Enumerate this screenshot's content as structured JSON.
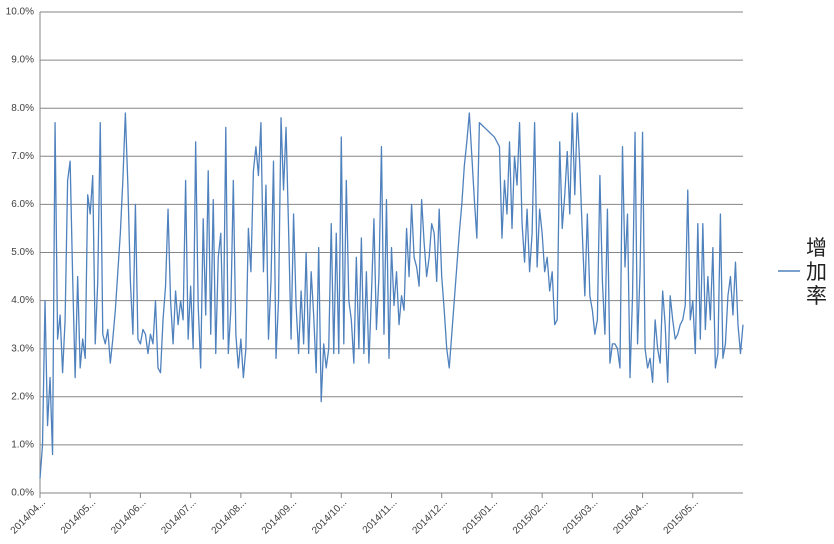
{
  "chart_data": {
    "type": "line",
    "categories": [
      "2014/04...",
      null,
      null,
      null,
      null,
      null,
      null,
      null,
      null,
      null,
      null,
      null,
      null,
      null,
      null,
      null,
      null,
      null,
      null,
      null,
      "2014/05...",
      null,
      null,
      null,
      null,
      null,
      null,
      null,
      null,
      null,
      null,
      null,
      null,
      null,
      null,
      null,
      null,
      null,
      null,
      null,
      "2014/06...",
      null,
      null,
      null,
      null,
      null,
      null,
      null,
      null,
      null,
      null,
      null,
      null,
      null,
      null,
      null,
      null,
      null,
      null,
      null,
      "2014/07...",
      null,
      null,
      null,
      null,
      null,
      null,
      null,
      null,
      null,
      null,
      null,
      null,
      null,
      null,
      null,
      null,
      null,
      null,
      null,
      "2014/08...",
      null,
      null,
      null,
      null,
      null,
      null,
      null,
      null,
      null,
      null,
      null,
      null,
      null,
      null,
      null,
      null,
      null,
      null,
      null,
      "2014/09...",
      null,
      null,
      null,
      null,
      null,
      null,
      null,
      null,
      null,
      null,
      null,
      null,
      null,
      null,
      null,
      null,
      null,
      null,
      null,
      "2014/10...",
      null,
      null,
      null,
      null,
      null,
      null,
      null,
      null,
      null,
      null,
      null,
      null,
      null,
      null,
      null,
      null,
      null,
      null,
      null,
      "2014/11...",
      null,
      null,
      null,
      null,
      null,
      null,
      null,
      null,
      null,
      null,
      null,
      null,
      null,
      null,
      null,
      null,
      null,
      null,
      null,
      "2014/12...",
      null,
      null,
      null,
      null,
      null,
      null,
      null,
      null,
      null,
      null,
      null,
      null,
      null,
      null,
      null,
      null,
      null,
      null,
      null,
      "2015/01...",
      null,
      null,
      null,
      null,
      null,
      null,
      null,
      null,
      null,
      null,
      null,
      null,
      null,
      null,
      null,
      null,
      null,
      null,
      null,
      "2015/02...",
      null,
      null,
      null,
      null,
      null,
      null,
      null,
      null,
      null,
      null,
      null,
      null,
      null,
      null,
      null,
      null,
      null,
      null,
      null,
      "2015/03...",
      null,
      null,
      null,
      null,
      null,
      null,
      null,
      null,
      null,
      null,
      null,
      null,
      null,
      null,
      null,
      null,
      null,
      null,
      null,
      "2015/04...",
      null,
      null,
      null,
      null,
      null,
      null,
      null,
      null,
      null,
      null,
      null,
      null,
      null,
      null,
      null,
      null,
      null,
      null,
      null,
      "2015/05...",
      null,
      null,
      null,
      null,
      null,
      null,
      null,
      null,
      null,
      null,
      null,
      null,
      null,
      null,
      null,
      null,
      null,
      null,
      null,
      null
    ],
    "series": [
      {
        "name": "增加率",
        "color": "#4f81bd",
        "values": [
          0.3,
          1.0,
          4.0,
          1.4,
          2.4,
          0.8,
          7.7,
          3.2,
          3.7,
          2.5,
          3.6,
          6.5,
          6.9,
          4.5,
          2.4,
          4.5,
          2.6,
          3.2,
          2.8,
          6.2,
          5.8,
          6.6,
          3.1,
          4.4,
          7.7,
          3.3,
          3.1,
          3.4,
          2.7,
          3.2,
          3.8,
          4.6,
          5.4,
          6.5,
          7.9,
          6.4,
          4.4,
          3.3,
          6.0,
          3.2,
          3.1,
          3.4,
          3.3,
          2.9,
          3.3,
          3.1,
          4.0,
          2.6,
          2.5,
          3.6,
          4.3,
          5.9,
          4.0,
          3.1,
          4.2,
          3.5,
          4.0,
          3.6,
          6.5,
          3.2,
          4.3,
          3.0,
          7.3,
          3.9,
          2.6,
          5.7,
          3.7,
          6.7,
          3.3,
          6.1,
          2.9,
          4.9,
          5.4,
          3.2,
          7.6,
          2.9,
          3.8,
          6.5,
          3.3,
          2.6,
          3.2,
          2.4,
          3.0,
          5.5,
          4.6,
          6.7,
          7.2,
          6.6,
          7.7,
          4.6,
          6.4,
          3.2,
          4.4,
          6.9,
          2.8,
          4.0,
          7.8,
          6.3,
          7.6,
          5.5,
          3.2,
          5.8,
          3.9,
          2.9,
          4.2,
          3.1,
          5.0,
          2.9,
          4.6,
          3.7,
          2.5,
          5.1,
          1.9,
          3.1,
          2.6,
          3.0,
          5.6,
          2.9,
          5.4,
          2.9,
          7.4,
          3.1,
          6.5,
          4.0,
          3.6,
          2.7,
          4.9,
          3.0,
          5.3,
          2.9,
          4.6,
          2.7,
          4.1,
          5.7,
          3.4,
          4.5,
          7.2,
          3.3,
          6.1,
          2.8,
          5.1,
          3.9,
          4.6,
          3.5,
          4.1,
          3.8,
          5.5,
          4.5,
          6.0,
          4.9,
          4.7,
          4.3,
          6.1,
          5.2,
          4.5,
          4.9,
          5.6,
          5.4,
          4.4,
          5.9,
          4.5,
          3.8,
          3.0,
          2.6,
          3.3,
          4.0,
          4.7,
          5.4,
          6.0,
          6.8,
          7.3,
          7.9,
          7.0,
          6.1,
          5.3,
          7.7,
          7.65,
          7.6,
          7.55,
          7.5,
          7.45,
          7.4,
          7.3,
          7.2,
          5.3,
          6.5,
          5.8,
          7.3,
          5.5,
          7.0,
          6.4,
          7.7,
          5.6,
          4.8,
          5.9,
          4.6,
          5.4,
          7.7,
          4.7,
          5.9,
          5.4,
          4.6,
          4.9,
          4.2,
          4.6,
          3.5,
          3.6,
          7.3,
          5.5,
          6.2,
          7.1,
          5.8,
          7.9,
          6.2,
          7.9,
          6.8,
          5.4,
          4.1,
          5.8,
          4.1,
          3.8,
          3.3,
          3.6,
          6.6,
          4.4,
          3.3,
          5.9,
          2.7,
          3.1,
          3.1,
          3.0,
          2.6,
          7.2,
          4.7,
          5.8,
          2.4,
          4.1,
          7.5,
          3.1,
          4.6,
          7.5,
          3.0,
          2.6,
          2.8,
          2.3,
          3.6,
          3.0,
          2.7,
          4.2,
          3.5,
          2.3,
          4.1,
          3.6,
          3.2,
          3.3,
          3.5,
          3.6,
          3.9,
          6.3,
          3.6,
          4.0,
          2.9,
          5.6,
          3.2,
          5.6,
          3.4,
          4.5,
          3.6,
          5.1,
          2.6,
          2.9,
          5.8,
          2.8,
          3.1,
          4.1,
          4.5,
          3.7,
          4.8,
          3.5,
          2.9,
          3.5
        ]
      }
    ],
    "ylim": [
      0,
      10
    ],
    "yticks": [
      {
        "value": 0,
        "label": "0.0%"
      },
      {
        "value": 1,
        "label": "1.0%"
      },
      {
        "value": 2,
        "label": "2.0%"
      },
      {
        "value": 3,
        "label": "3.0%"
      },
      {
        "value": 4,
        "label": "4.0%"
      },
      {
        "value": 5,
        "label": "5.0%"
      },
      {
        "value": 6,
        "label": "6.0%"
      },
      {
        "value": 7,
        "label": "7.0%"
      },
      {
        "value": 8,
        "label": "8.0%"
      },
      {
        "value": 9,
        "label": "9.0%"
      },
      {
        "value": 10,
        "label": "10.0%"
      }
    ],
    "grid": true,
    "legend": "right"
  }
}
